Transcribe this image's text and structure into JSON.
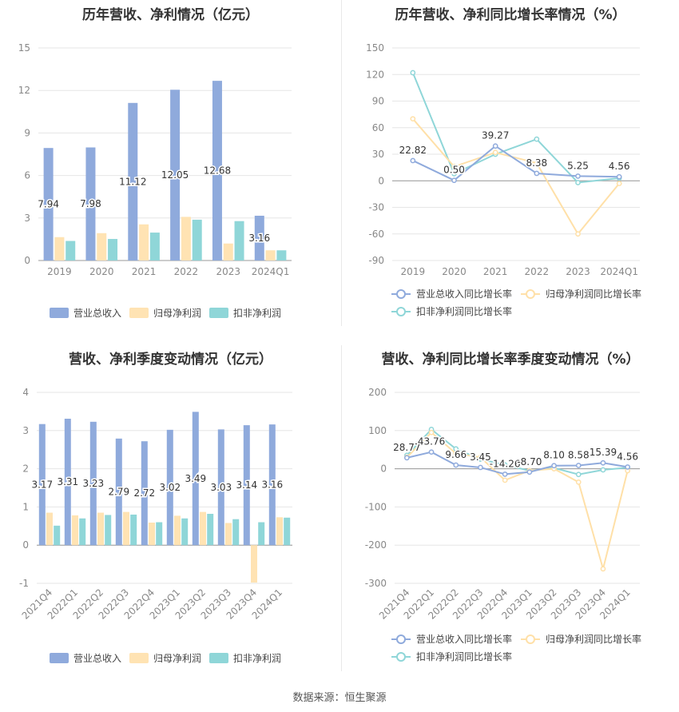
{
  "source_text": "数据来源：恒生聚源",
  "colors": {
    "revenue": "#8faadc",
    "parent_profit": "#ffe3b3",
    "deducted_profit": "#8fd6d8",
    "grid": "#e6e6e6",
    "axis": "#999999"
  },
  "chart_data": [
    {
      "type": "bar",
      "title": "历年营收、净利情况（亿元）",
      "categories": [
        "2019",
        "2020",
        "2021",
        "2022",
        "2023",
        "2024Q1"
      ],
      "yticks": [
        "15",
        "12",
        "9",
        "6",
        "3",
        "0"
      ],
      "ylim": [
        0,
        15
      ],
      "series": [
        {
          "name": "营业总收入",
          "values": [
            7.94,
            7.98,
            11.12,
            12.05,
            12.68,
            3.16
          ],
          "labels": [
            "7.94",
            "7.98",
            "11.12",
            "12.05",
            "12.68",
            "3.16"
          ]
        },
        {
          "name": "归母净利润",
          "values": [
            1.65,
            1.93,
            2.55,
            3.08,
            1.2,
            0.72
          ]
        },
        {
          "name": "扣非净利润",
          "values": [
            1.38,
            1.52,
            1.97,
            2.88,
            2.78,
            0.72
          ]
        }
      ],
      "legend_position": "bottom"
    },
    {
      "type": "line",
      "title": "历年营收、净利同比增长率情况（%）",
      "categories": [
        "2019",
        "2020",
        "2021",
        "2022",
        "2023",
        "2024Q1"
      ],
      "yticks": [
        "150",
        "120",
        "90",
        "60",
        "30",
        "0",
        "-30",
        "-60",
        "-90"
      ],
      "ylim": [
        -90,
        150
      ],
      "series": [
        {
          "name": "营业总收入同比增长率",
          "values": [
            22.82,
            0.5,
            39.27,
            8.38,
            5.25,
            4.56
          ],
          "labels": [
            "22.82",
            "0.50",
            "39.27",
            "8.38",
            "5.25",
            "4.56"
          ]
        },
        {
          "name": "归母净利润同比增长率",
          "values": [
            70,
            16,
            32,
            20,
            -60,
            -3
          ]
        },
        {
          "name": "扣非净利润同比增长率",
          "values": [
            122,
            8,
            30,
            47,
            -2,
            3
          ]
        }
      ],
      "legend_position": "bottom"
    },
    {
      "type": "bar",
      "title": "营收、净利季度变动情况（亿元）",
      "categories": [
        "2021Q4",
        "2022Q1",
        "2022Q2",
        "2022Q3",
        "2022Q4",
        "2023Q1",
        "2023Q2",
        "2023Q3",
        "2023Q4",
        "2024Q1"
      ],
      "yticks": [
        "4",
        "3",
        "2",
        "1",
        "0",
        "-1"
      ],
      "ylim": [
        -1,
        4
      ],
      "series": [
        {
          "name": "营业总收入",
          "values": [
            3.17,
            3.31,
            3.23,
            2.79,
            2.72,
            3.02,
            3.49,
            3.03,
            3.14,
            3.16
          ],
          "labels": [
            "3.17",
            "3.31",
            "3.23",
            "2.79",
            "2.72",
            "3.02",
            "3.49",
            "3.03",
            "3.14",
            "3.16"
          ]
        },
        {
          "name": "归母净利润",
          "values": [
            0.85,
            0.78,
            0.85,
            0.87,
            0.59,
            0.77,
            0.87,
            0.58,
            -0.98,
            0.73
          ]
        },
        {
          "name": "扣非净利润",
          "values": [
            0.51,
            0.7,
            0.79,
            0.8,
            0.6,
            0.7,
            0.82,
            0.68,
            0.6,
            0.72
          ]
        }
      ],
      "legend_position": "bottom"
    },
    {
      "type": "line",
      "title": "营收、净利同比增长率季度变动情况（%）",
      "categories": [
        "2021Q4",
        "2022Q1",
        "2022Q2",
        "2022Q3",
        "2022Q4",
        "2023Q1",
        "2023Q2",
        "2023Q3",
        "2023Q4",
        "2024Q1"
      ],
      "yticks": [
        "200",
        "100",
        "0",
        "-100",
        "-200",
        "-300"
      ],
      "ylim": [
        -300,
        200
      ],
      "series": [
        {
          "name": "营业总收入同比增长率",
          "values": [
            28.77,
            43.76,
            9.66,
            3.45,
            -14.26,
            -8.7,
            8.1,
            8.58,
            15.39,
            4.56
          ],
          "labels": [
            "28.77",
            "43.76",
            "9.66",
            "3.45",
            "-14.26",
            "-8.70",
            "8.10",
            "8.58",
            "15.39",
            "4.56"
          ]
        },
        {
          "name": "归母净利润同比增长率",
          "values": [
            30,
            95,
            40,
            30,
            -30,
            -5,
            0,
            -35,
            -262,
            -5
          ]
        },
        {
          "name": "扣非净利润同比增长率",
          "values": [
            35,
            103,
            52,
            25,
            10,
            -5,
            2,
            -15,
            -3,
            3
          ]
        }
      ],
      "legend_position": "bottom"
    }
  ]
}
